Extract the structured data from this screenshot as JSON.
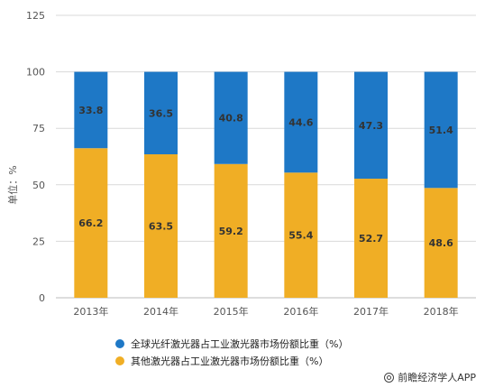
{
  "colors": {
    "fiber": "#1E78C6",
    "other": "#F0AE25",
    "grid": "#D9D9D9",
    "axis": "#BBBBBB"
  },
  "legend": {
    "fiber": "全球光纤激光器占工业激光器市场份额比重（%）",
    "other": "其他激光器占工业激光器市场份额比重（%）"
  },
  "credit": {
    "text": "前瞻经济学人APP",
    "icon": "circle-logo-icon"
  },
  "chart_data": {
    "type": "bar",
    "stacked": true,
    "categories": [
      "2013年",
      "2014年",
      "2015年",
      "2016年",
      "2017年",
      "2018年"
    ],
    "series": [
      {
        "name": "其他激光器占工业激光器市场份额比重（%）",
        "values": [
          66.2,
          63.5,
          59.2,
          55.4,
          52.7,
          48.6
        ],
        "color_key": "other"
      },
      {
        "name": "全球光纤激光器占工业激光器市场份额比重（%）",
        "values": [
          33.8,
          36.5,
          40.8,
          44.6,
          47.3,
          51.4
        ],
        "color_key": "fiber"
      }
    ],
    "ylabel": "单位：%",
    "ylim": [
      0,
      125
    ],
    "yticks": [
      0,
      25,
      50,
      75,
      100,
      125
    ],
    "grid": true,
    "legend_position": "bottom"
  }
}
